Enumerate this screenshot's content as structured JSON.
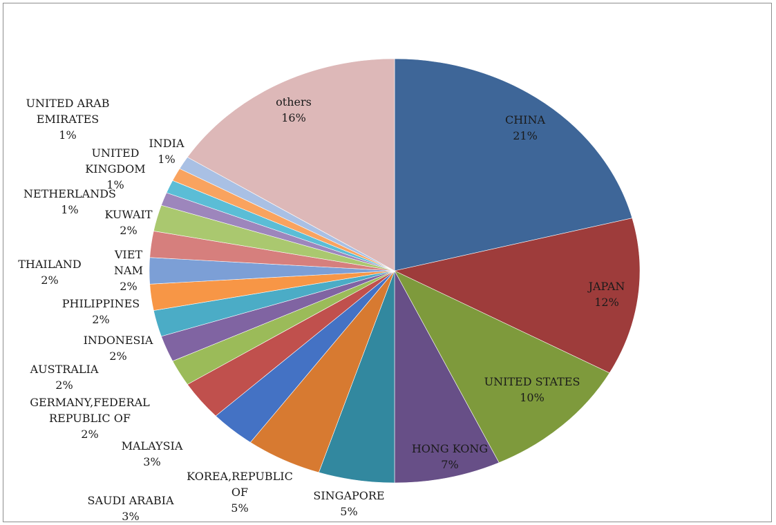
{
  "chart_data": {
    "type": "pie",
    "title": "",
    "legend": "none",
    "slices": [
      {
        "label_lines": [
          "CHINA",
          "21%"
        ],
        "value": 21,
        "color": "#3e6698"
      },
      {
        "label_lines": [
          "JAPAN",
          "12%"
        ],
        "value": 12,
        "color": "#9e3c3b"
      },
      {
        "label_lines": [
          "UNITED STATES",
          "10%"
        ],
        "value": 10,
        "color": "#7e9a3c"
      },
      {
        "label_lines": [
          "HONG KONG",
          "7%"
        ],
        "value": 7,
        "color": "#674f87"
      },
      {
        "label_lines": [
          "SINGAPORE",
          "5%"
        ],
        "value": 5,
        "color": "#32889f"
      },
      {
        "label_lines": [
          "KOREA,REPUBLIC",
          "OF",
          "5%"
        ],
        "value": 5,
        "color": "#d77a31"
      },
      {
        "label_lines": [
          "SAUDI ARABIA",
          "3%"
        ],
        "value": 3,
        "color": "#4472c4"
      },
      {
        "label_lines": [
          "MALAYSIA",
          "3%"
        ],
        "value": 3,
        "color": "#c0504d"
      },
      {
        "label_lines": [
          "GERMANY,FEDERAL",
          "REPUBLIC OF",
          "2%"
        ],
        "value": 2,
        "color": "#9bbb59"
      },
      {
        "label_lines": [
          "AUSTRALIA",
          "2%"
        ],
        "value": 2,
        "color": "#8064a2"
      },
      {
        "label_lines": [
          "INDONESIA",
          "2%"
        ],
        "value": 2,
        "color": "#4bacc6"
      },
      {
        "label_lines": [
          "PHILIPPINES",
          "2%"
        ],
        "value": 2,
        "color": "#f79646"
      },
      {
        "label_lines": [
          "VIET",
          "NAM",
          "2%"
        ],
        "value": 2,
        "color": "#7c9fd6"
      },
      {
        "label_lines": [
          "THAILAND",
          "2%"
        ],
        "value": 2,
        "color": "#d67f7d"
      },
      {
        "label_lines": [
          "KUWAIT",
          "2%"
        ],
        "value": 2,
        "color": "#aac86f"
      },
      {
        "label_lines": [
          "NETHERLANDS",
          "1%"
        ],
        "value": 1,
        "color": "#9d86bc"
      },
      {
        "label_lines": [
          "UNITED",
          "KINGDOM",
          "1%"
        ],
        "value": 1,
        "color": "#5bbdd6"
      },
      {
        "label_lines": [
          "INDIA",
          "1%"
        ],
        "value": 1,
        "color": "#f9a35f"
      },
      {
        "label_lines": [
          "UNITED ARAB",
          "EMIRATES",
          "1%"
        ],
        "value": 1,
        "color": "#a9c0e4"
      },
      {
        "label_lines": [
          "others",
          "16%"
        ],
        "value": 16,
        "color": "#ddb8b8"
      }
    ]
  }
}
